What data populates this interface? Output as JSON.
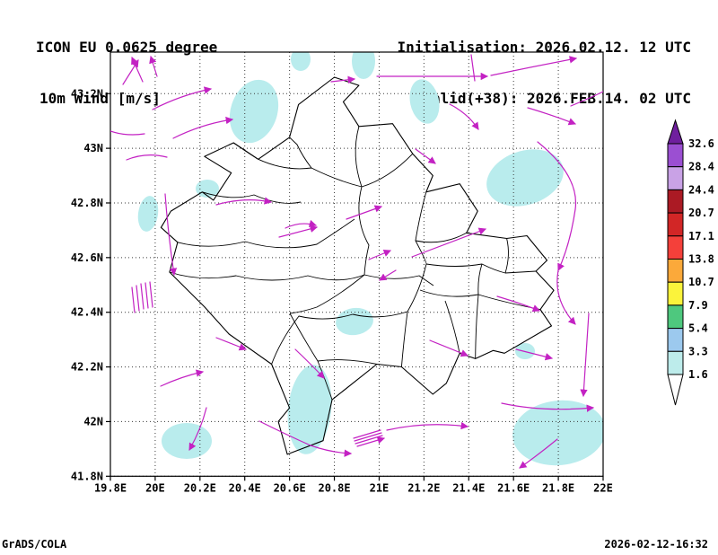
{
  "header": {
    "model_line": "ICON EU 0.0625 degree",
    "field_line": "10m Wind [m/s]",
    "init_line": "Initialisation: 2026.02.12. 12 UTC",
    "valid_line": "Valid(+38): 2026.FEB.14. 02 UTC"
  },
  "footer": {
    "credit": "GrADS/COLA",
    "timestamp": "2026-02-12-16:32"
  },
  "chart_data": {
    "type": "map",
    "title": "ICON EU 0.0625 degree 10m Wind [m/s]",
    "region": "Kosovo",
    "grid": "dotted",
    "x_axis": {
      "tick_labels": [
        "19.8E",
        "20E",
        "20.2E",
        "20.4E",
        "20.6E",
        "20.8E",
        "21E",
        "21.2E",
        "21.4E",
        "21.6E",
        "21.8E",
        "22E"
      ],
      "tick_values": [
        19.8,
        20,
        20.2,
        20.4,
        20.6,
        20.8,
        21,
        21.2,
        21.4,
        21.6,
        21.8,
        22
      ],
      "range": [
        19.8,
        22.0
      ]
    },
    "y_axis": {
      "tick_labels": [
        "41.8N",
        "42N",
        "42.2N",
        "42.4N",
        "42.6N",
        "42.8N",
        "43N",
        "43.2N"
      ],
      "tick_values": [
        41.8,
        42,
        42.2,
        42.4,
        42.6,
        42.8,
        43,
        43.2
      ],
      "range": [
        41.8,
        43.352
      ]
    },
    "colorbar": {
      "unit": "m/s",
      "levels": [
        1.6,
        3.3,
        5.4,
        7.9,
        10.7,
        13.8,
        17.1,
        20.7,
        24.4,
        28.4,
        32.6
      ],
      "colors": [
        "#ffffff",
        "#bdeceb",
        "#9cc9ee",
        "#4ec87e",
        "#fbf33b",
        "#fba93a",
        "#f4403a",
        "#d22626",
        "#ab1a24",
        "#c9a2e6",
        "#9b4fd2",
        "#6f1f9e"
      ]
    },
    "wind_color": "#c322c3",
    "shade_color": "#b9eced",
    "map_line_color": "#000000"
  }
}
